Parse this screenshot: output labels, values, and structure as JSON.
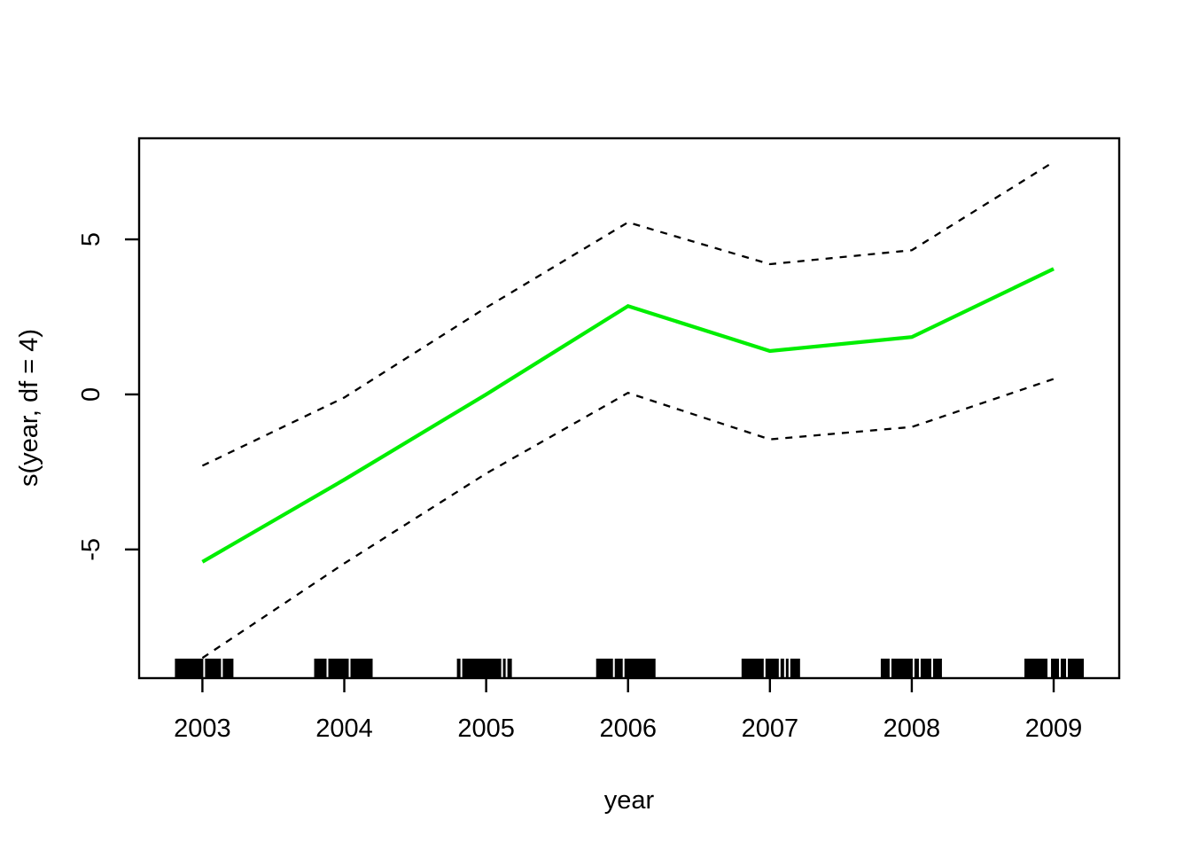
{
  "chart_data": {
    "type": "line",
    "title": "",
    "xlabel": "year",
    "ylabel": "s(year, df = 4)",
    "x": [
      2003,
      2004,
      2005,
      2006,
      2007,
      2008,
      2009
    ],
    "x_tick_labels": [
      "2003",
      "2004",
      "2005",
      "2006",
      "2007",
      "2008",
      "2009"
    ],
    "y_ticks": [
      -5,
      0,
      5
    ],
    "y_tick_labels": [
      "-5",
      "0",
      "5"
    ],
    "xlim": [
      2002.554,
      2009.462
    ],
    "ylim": [
      -9.15,
      8.26
    ],
    "grid": false,
    "legend": "none",
    "colors": {
      "fit": "#00EE00",
      "confidence_band": "#000000",
      "axis": "#000000",
      "background": "#ffffff"
    },
    "series": [
      {
        "name": "fitted-smooth",
        "style": "solid",
        "color": "#00EE00",
        "width": 4.2,
        "values": [
          -5.4,
          -2.75,
          0.0,
          2.85,
          1.4,
          1.85,
          4.05
        ]
      },
      {
        "name": "upper-confidence",
        "style": "dashed",
        "color": "#000000",
        "width": 2.3,
        "values": [
          -2.3,
          -0.1,
          2.8,
          5.55,
          4.2,
          4.65,
          7.5
        ]
      },
      {
        "name": "lower-confidence",
        "style": "dashed",
        "color": "#000000",
        "width": 2.3,
        "values": [
          -8.5,
          -5.45,
          -2.55,
          0.05,
          -1.45,
          -1.05,
          0.5
        ]
      }
    ],
    "rug": {
      "description": "black data rug marks clustered at each year on the x-axis",
      "clusters": [
        {
          "year": 2003,
          "segments": [
            [
              -31,
              1
            ],
            [
              3,
              21
            ],
            [
              23,
              35
            ]
          ]
        },
        {
          "year": 2004,
          "segments": [
            [
              -34,
              -20
            ],
            [
              -18,
              5
            ],
            [
              7,
              32
            ]
          ]
        },
        {
          "year": 2005,
          "segments": [
            [
              -33,
              -29
            ],
            [
              -27,
              17
            ],
            [
              19,
              22
            ],
            [
              24,
              29
            ]
          ]
        },
        {
          "year": 2006,
          "segments": [
            [
              -36,
              -17
            ],
            [
              -15,
              -6
            ],
            [
              -4,
              31
            ]
          ]
        },
        {
          "year": 2007,
          "segments": [
            [
              -32,
              -7
            ],
            [
              -5,
              10
            ],
            [
              12,
              16
            ],
            [
              18,
              21
            ],
            [
              23,
              34
            ]
          ]
        },
        {
          "year": 2008,
          "segments": [
            [
              -35,
              -25
            ],
            [
              -23,
              1
            ],
            [
              3,
              8
            ],
            [
              10,
              22
            ],
            [
              24,
              34
            ]
          ]
        },
        {
          "year": 2009,
          "segments": [
            [
              -33,
              -7
            ],
            [
              -3,
              6
            ],
            [
              8,
              14
            ],
            [
              16,
              34
            ]
          ]
        }
      ]
    }
  }
}
